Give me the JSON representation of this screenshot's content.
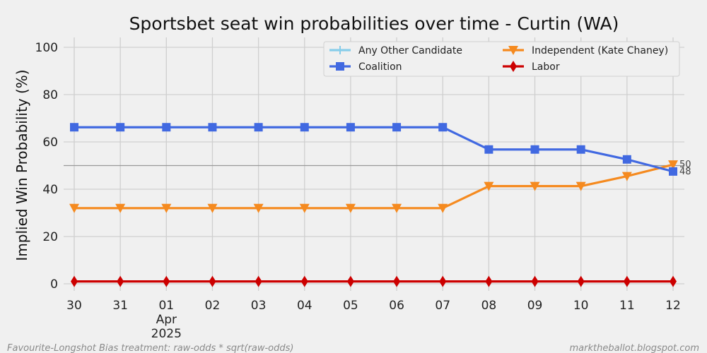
{
  "chart_data": {
    "type": "line",
    "title": "Sportsbet seat win probabilities over time - Curtin (WA)",
    "ylabel": "Implied Win Probability (%)",
    "xlabel": "",
    "ylim": [
      0,
      100
    ],
    "y_ticks": [
      0,
      20,
      40,
      60,
      80,
      100
    ],
    "x_ticks": [
      "30",
      "31",
      "01",
      "02",
      "03",
      "04",
      "05",
      "06",
      "07",
      "08",
      "09",
      "10",
      "11",
      "12"
    ],
    "x_tick_sublabels": {
      "01": [
        "Apr",
        "2025"
      ]
    },
    "reference_line": 50,
    "grid": true,
    "legend_position": "top-right",
    "series": [
      {
        "name": "Any Other Candidate",
        "color": "#87cdea",
        "marker": "plus",
        "values": [
          null,
          null,
          null,
          null,
          null,
          null,
          null,
          null,
          null,
          null,
          null,
          null,
          null,
          null
        ]
      },
      {
        "name": "Independent (Kate Chaney)",
        "color": "#f58a1f",
        "marker": "triangle-down",
        "values": [
          32,
          32,
          32,
          32,
          32,
          32,
          32,
          32,
          32,
          41.3,
          41.3,
          41.3,
          45.5,
          50.4
        ],
        "end_label": "50"
      },
      {
        "name": "Coalition",
        "color": "#4169e1",
        "marker": "square",
        "values": [
          66.2,
          66.2,
          66.2,
          66.2,
          66.2,
          66.2,
          66.2,
          66.2,
          66.2,
          56.8,
          56.8,
          56.8,
          52.6,
          47.5
        ],
        "end_label": "48"
      },
      {
        "name": "Labor",
        "color": "#cc0000",
        "marker": "diamond",
        "values": [
          1,
          1,
          1,
          1,
          1,
          1,
          1,
          1,
          1,
          1,
          1,
          1,
          1,
          1
        ]
      }
    ]
  },
  "footer": {
    "left": "Favourite-Longshot Bias treatment: raw-odds * sqrt(raw-odds)",
    "right": "marktheballot.blogspot.com"
  }
}
